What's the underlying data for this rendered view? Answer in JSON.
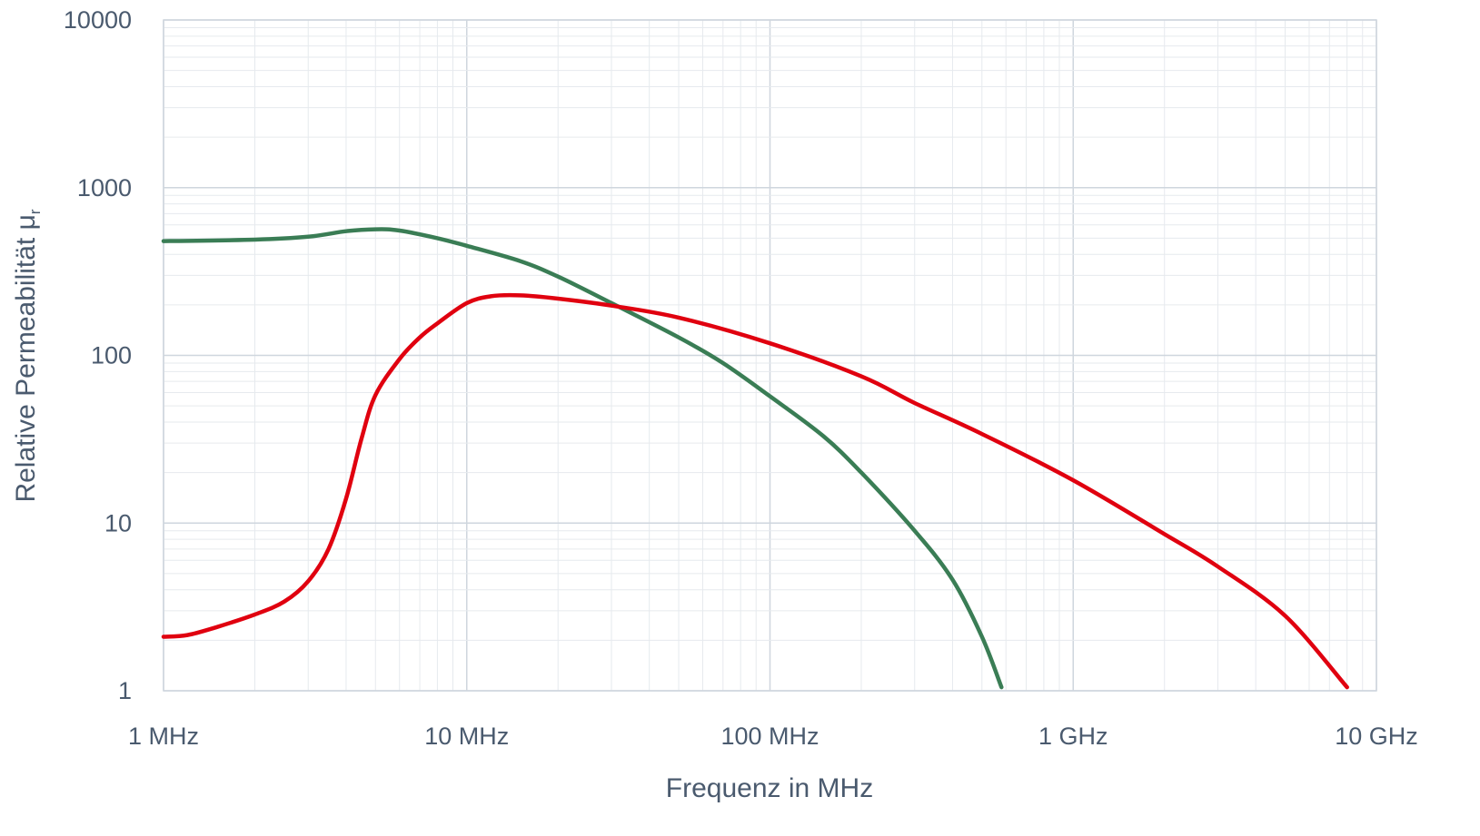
{
  "chart_data": {
    "type": "line",
    "xscale": "log",
    "yscale": "log",
    "xlabel": "Frequenz in MHz",
    "ylabel": "Relative Permeabilität μ",
    "ylabel_subscript": "r",
    "xlim": [
      1,
      10000
    ],
    "ylim": [
      1,
      10000
    ],
    "x_ticks": [
      1,
      10,
      100,
      1000,
      10000
    ],
    "x_tick_labels": [
      "1 MHz",
      "10 MHz",
      "100 MHz",
      "1 GHz",
      "10 GHz"
    ],
    "y_ticks": [
      1,
      10,
      100,
      1000,
      10000
    ],
    "y_tick_labels": [
      "1",
      "10",
      "100",
      "1000",
      "10000"
    ],
    "grid": true,
    "legend": "none",
    "series": [
      {
        "color": "#3a7d55",
        "points": [
          [
            1,
            480
          ],
          [
            2,
            490
          ],
          [
            3,
            510
          ],
          [
            4,
            550
          ],
          [
            5,
            565
          ],
          [
            6,
            555
          ],
          [
            8,
            500
          ],
          [
            10,
            450
          ],
          [
            15,
            365
          ],
          [
            20,
            295
          ],
          [
            30,
            205
          ],
          [
            50,
            128
          ],
          [
            70,
            90
          ],
          [
            100,
            57
          ],
          [
            150,
            33
          ],
          [
            200,
            20
          ],
          [
            300,
            9
          ],
          [
            400,
            4.6
          ],
          [
            500,
            2.1
          ],
          [
            580,
            1.05
          ]
        ]
      },
      {
        "color": "#e0000f",
        "points": [
          [
            1,
            2.1
          ],
          [
            1.2,
            2.15
          ],
          [
            1.5,
            2.4
          ],
          [
            2,
            2.85
          ],
          [
            2.5,
            3.4
          ],
          [
            3,
            4.5
          ],
          [
            3.5,
            7
          ],
          [
            4,
            14
          ],
          [
            4.5,
            32
          ],
          [
            5,
            58
          ],
          [
            6,
            95
          ],
          [
            7,
            128
          ],
          [
            8,
            155
          ],
          [
            10,
            205
          ],
          [
            12,
            225
          ],
          [
            15,
            228
          ],
          [
            20,
            218
          ],
          [
            30,
            198
          ],
          [
            50,
            168
          ],
          [
            100,
            118
          ],
          [
            200,
            75
          ],
          [
            300,
            52
          ],
          [
            500,
            34
          ],
          [
            1000,
            18
          ],
          [
            2000,
            8.6
          ],
          [
            3000,
            5.5
          ],
          [
            5000,
            2.8
          ],
          [
            8000,
            1.05
          ]
        ]
      }
    ]
  }
}
